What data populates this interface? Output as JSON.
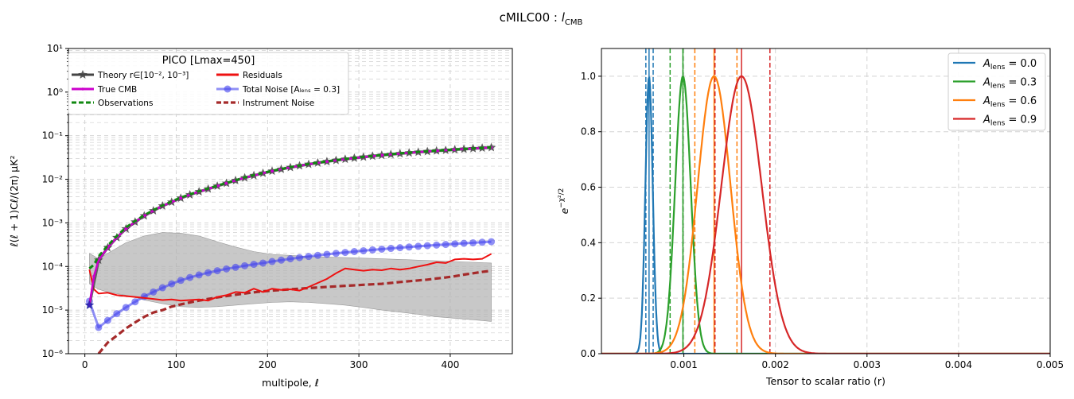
{
  "figure": {
    "suptitle": "cMILC00 : ",
    "suptitle_sym": "l",
    "suptitle_sub": "CMB"
  },
  "colors": {
    "theory": "#444444",
    "true_cmb": "#cc00cc",
    "observations": "#118811",
    "residuals": "#ee1111",
    "total_noise": "#4444ee",
    "instrument_noise": "#a52a2a",
    "band": "#b0b0b0",
    "a00": "#1f77b4",
    "a03": "#2ca02c",
    "a06": "#ff7f0e",
    "a09": "#d62728"
  },
  "chart_data": [
    {
      "type": "line",
      "xlabel": "multipole, ℓ",
      "ylabel": "ℓ(ℓ + 1)Cℓ/(2π)  μK²",
      "xlim": [
        -18,
        468
      ],
      "ylim": [
        1e-06,
        10
      ],
      "yscale": "log",
      "grid": true,
      "xticks": [
        "0",
        "100",
        "200",
        "300",
        "400"
      ],
      "xtick_values": [
        0,
        100,
        200,
        300,
        400
      ],
      "yticks": [
        "10⁻⁶",
        "10⁻⁵",
        "10⁻⁴",
        "10⁻³",
        "10⁻²",
        "10⁻¹",
        "10⁰",
        "10¹"
      ],
      "ytick_exponents": [
        -6,
        -5,
        -4,
        -3,
        -2,
        -1,
        0,
        1
      ],
      "legend": {
        "title": "PICO [Lmax=450]",
        "placement": "upper-left",
        "entries": [
          {
            "key": "theory",
            "label": "Theory r∈[10⁻², 10⁻³]"
          },
          {
            "key": "true_cmb",
            "label": "True CMB"
          },
          {
            "key": "observations",
            "label": "Observations"
          },
          {
            "key": "residuals",
            "label": "Residuals"
          },
          {
            "key": "total_noise",
            "label": "Total Noise [Aₗₑₙₛ = 0.3]"
          },
          {
            "key": "instrument_noise",
            "label": "Instrument Noise"
          }
        ]
      },
      "series": {
        "theory": {
          "x": [
            5,
            15,
            25,
            35,
            45,
            55,
            65,
            75,
            85,
            95,
            105,
            115,
            125,
            135,
            145,
            155,
            165,
            175,
            185,
            195,
            205,
            215,
            225,
            235,
            245,
            255,
            265,
            275,
            285,
            295,
            305,
            315,
            325,
            335,
            345,
            355,
            365,
            375,
            385,
            395,
            405,
            415,
            425,
            435,
            445
          ],
          "y": [
            1.3e-05,
            0.00014,
            0.00027,
            0.00046,
            0.00073,
            0.00105,
            0.00145,
            0.0019,
            0.00245,
            0.003,
            0.0037,
            0.0044,
            0.0052,
            0.006,
            0.007,
            0.0081,
            0.0094,
            0.0108,
            0.0122,
            0.0138,
            0.0154,
            0.017,
            0.0187,
            0.0204,
            0.0221,
            0.0238,
            0.0255,
            0.0272,
            0.0289,
            0.0306,
            0.0323,
            0.034,
            0.0356,
            0.0372,
            0.0388,
            0.0404,
            0.0419,
            0.0434,
            0.0449,
            0.0463,
            0.0478,
            0.0492,
            0.0506,
            0.052,
            0.0535
          ]
        },
        "true_cmb": {
          "x": [
            5,
            10,
            15,
            25,
            35,
            45,
            55,
            65,
            75,
            85,
            95,
            105,
            115,
            125,
            135,
            145,
            155,
            165,
            175,
            185,
            195,
            205,
            225,
            245,
            265,
            285,
            305,
            325,
            345,
            365,
            385,
            405,
            425,
            445
          ],
          "y": [
            1.3e-05,
            6e-05,
            0.00014,
            0.00027,
            0.00046,
            0.00073,
            0.00105,
            0.00145,
            0.0019,
            0.00245,
            0.003,
            0.0037,
            0.0044,
            0.0052,
            0.006,
            0.007,
            0.0081,
            0.0094,
            0.0108,
            0.0122,
            0.0138,
            0.0154,
            0.0187,
            0.0221,
            0.0255,
            0.0289,
            0.0323,
            0.0356,
            0.0388,
            0.0419,
            0.0449,
            0.0478,
            0.0506,
            0.0535
          ]
        },
        "observations": {
          "x": [
            5,
            10,
            15,
            25,
            35,
            45,
            55,
            65,
            75,
            85,
            95,
            105,
            115,
            125,
            135,
            145,
            155,
            165,
            175,
            185,
            195,
            205,
            225,
            245,
            265,
            285,
            305,
            325,
            345,
            365,
            385,
            405,
            425,
            445
          ],
          "y": [
            9e-05,
            0.00011,
            0.00017,
            0.0003,
            0.0005,
            0.00078,
            0.0011,
            0.0015,
            0.00195,
            0.0025,
            0.0031,
            0.0038,
            0.0045,
            0.0053,
            0.0061,
            0.0071,
            0.0082,
            0.0095,
            0.011,
            0.0124,
            0.014,
            0.0156,
            0.019,
            0.0224,
            0.0258,
            0.0292,
            0.0326,
            0.036,
            0.0392,
            0.0423,
            0.0453,
            0.0482,
            0.051,
            0.054
          ]
        },
        "residuals": {
          "x": [
            5,
            10,
            15,
            25,
            35,
            45,
            55,
            65,
            75,
            85,
            95,
            105,
            115,
            125,
            135,
            145,
            155,
            165,
            175,
            185,
            195,
            205,
            215,
            225,
            235,
            245,
            255,
            265,
            275,
            285,
            295,
            305,
            315,
            325,
            335,
            345,
            355,
            365,
            375,
            385,
            395,
            405,
            415,
            425,
            435,
            445
          ],
          "y": [
            8.5e-05,
            3e-05,
            2.4e-05,
            2.5e-05,
            2.2e-05,
            2.1e-05,
            2e-05,
            1.9e-05,
            1.8e-05,
            1.7e-05,
            1.75e-05,
            1.65e-05,
            1.7e-05,
            1.75e-05,
            1.65e-05,
            2e-05,
            2.2e-05,
            2.6e-05,
            2.5e-05,
            3.1e-05,
            2.6e-05,
            3.1e-05,
            2.9e-05,
            3e-05,
            2.8e-05,
            3.4e-05,
            4.2e-05,
            5.2e-05,
            7e-05,
            9e-05,
            8.5e-05,
            8e-05,
            8.5e-05,
            8.2e-05,
            9e-05,
            8.5e-05,
            9e-05,
            0.0001,
            0.00011,
            0.000125,
            0.00012,
            0.000145,
            0.00015,
            0.000145,
            0.00015,
            0.000195
          ]
        },
        "total_noise": {
          "x": [
            5,
            15,
            25,
            35,
            45,
            55,
            65,
            75,
            85,
            95,
            105,
            115,
            125,
            135,
            145,
            155,
            165,
            175,
            185,
            195,
            205,
            215,
            225,
            235,
            245,
            255,
            265,
            275,
            285,
            295,
            305,
            315,
            325,
            335,
            345,
            355,
            365,
            375,
            385,
            395,
            405,
            415,
            425,
            435,
            445
          ],
          "y": [
            1.6e-05,
            4e-06,
            5.8e-06,
            8.3e-06,
            1.15e-05,
            1.55e-05,
            2.05e-05,
            2.6e-05,
            3.25e-05,
            4e-05,
            4.8e-05,
            5.6e-05,
            6.4e-05,
            7.2e-05,
            8e-05,
            8.8e-05,
            9.6e-05,
            0.000104,
            0.000112,
            0.00012,
            0.00013,
            0.00014,
            0.00015,
            0.00016,
            0.00017,
            0.00018,
            0.00019,
            0.0002,
            0.00021,
            0.00022,
            0.00023,
            0.00024,
            0.00025,
            0.00026,
            0.00027,
            0.00028,
            0.00029,
            0.0003,
            0.00031,
            0.00032,
            0.00033,
            0.00034,
            0.00035,
            0.00036,
            0.00037
          ]
        },
        "instrument_noise": {
          "x": [
            15,
            25,
            35,
            45,
            55,
            65,
            75,
            85,
            95,
            105,
            115,
            125,
            135,
            145,
            155,
            165,
            175,
            185,
            195,
            205,
            215,
            225,
            235,
            245,
            255,
            265,
            275,
            285,
            295,
            305,
            315,
            325,
            335,
            345,
            355,
            365,
            375,
            385,
            395,
            405,
            415,
            425,
            435,
            445
          ],
          "y": [
            1e-06,
            1.8e-06,
            2.6e-06,
            3.8e-06,
            5.2e-06,
            7e-06,
            8.8e-06,
            1e-05,
            1.2e-05,
            1.35e-05,
            1.5e-05,
            1.65e-05,
            1.8e-05,
            1.95e-05,
            2.1e-05,
            2.25e-05,
            2.4e-05,
            2.55e-05,
            2.7e-05,
            2.8e-05,
            2.9e-05,
            3e-05,
            3.1e-05,
            3.2e-05,
            3.3e-05,
            3.4e-05,
            3.5e-05,
            3.6e-05,
            3.7e-05,
            3.8e-05,
            3.9e-05,
            4e-05,
            4.2e-05,
            4.4e-05,
            4.6e-05,
            4.8e-05,
            5e-05,
            5.3e-05,
            5.6e-05,
            6e-05,
            6.5e-05,
            7e-05,
            7.5e-05,
            8e-05
          ]
        },
        "band": {
          "x": [
            5,
            15,
            25,
            45,
            65,
            85,
            105,
            125,
            145,
            165,
            185,
            205,
            225,
            245,
            265,
            285,
            305,
            325,
            345,
            365,
            385,
            405,
            425,
            445
          ],
          "upper": [
            0.0002,
            0.00015,
            0.0002,
            0.00035,
            0.0005,
            0.0006,
            0.00058,
            0.0005,
            0.00037,
            0.00028,
            0.00022,
            0.00019,
            0.00018,
            0.00017,
            0.000165,
            0.00016,
            0.000155,
            0.00015,
            0.000145,
            0.00014,
            0.000135,
            0.00013,
            0.000125,
            0.00012
          ],
          "lower": [
            4e-05,
            3e-05,
            2.6e-05,
            2.2e-05,
            1.7e-05,
            1.4e-05,
            1.2e-05,
            1.15e-05,
            1.2e-05,
            1.3e-05,
            1.4e-05,
            1.5e-05,
            1.55e-05,
            1.5e-05,
            1.4e-05,
            1.3e-05,
            1.15e-05,
            1e-05,
            9e-06,
            8e-06,
            7e-06,
            6.5e-06,
            6e-06,
            5.5e-06
          ]
        }
      }
    },
    {
      "type": "line",
      "xlabel": "Tensor to scalar ratio (r)",
      "ylabel": "e^{-χ²/2}",
      "ylabel_base": "e",
      "ylabel_exp": "−χ²/2",
      "xlim": [
        0.0001,
        0.005
      ],
      "ylim": [
        0,
        1.1
      ],
      "grid": true,
      "xticks": [
        "0.001",
        "0.002",
        "0.003",
        "0.004",
        "0.005"
      ],
      "xtick_values": [
        0.001,
        0.002,
        0.003,
        0.004,
        0.005
      ],
      "yticks": [
        "0.0",
        "0.2",
        "0.4",
        "0.6",
        "0.8",
        "1.0"
      ],
      "ytick_values": [
        0,
        0.2,
        0.4,
        0.6,
        0.8,
        1.0
      ],
      "legend": {
        "placement": "upper-right",
        "entries": [
          {
            "key": "a00",
            "label_base": "A",
            "label_sub": "lens",
            "label_rest": " = 0.0"
          },
          {
            "key": "a03",
            "label_base": "A",
            "label_sub": "lens",
            "label_rest": " = 0.3"
          },
          {
            "key": "a06",
            "label_base": "A",
            "label_sub": "lens",
            "label_rest": " = 0.6"
          },
          {
            "key": "a09",
            "label_base": "A",
            "label_sub": "lens",
            "label_rest": " = 0.9"
          }
        ]
      },
      "series": [
        {
          "key": "a00",
          "peak": 0.00062,
          "sigma": 4e-05,
          "lo": 0.000585,
          "hi": 0.000665
        },
        {
          "key": "a03",
          "peak": 0.00099,
          "sigma": 8.5e-05,
          "lo": 0.00085,
          "hi": 0.00099
        },
        {
          "key": "a06",
          "peak": 0.00133,
          "sigma": 0.00018,
          "lo": 0.00112,
          "hi": 0.00158
        },
        {
          "key": "a09",
          "peak": 0.00163,
          "sigma": 0.00022,
          "lo": 0.00134,
          "hi": 0.00194
        }
      ]
    }
  ]
}
